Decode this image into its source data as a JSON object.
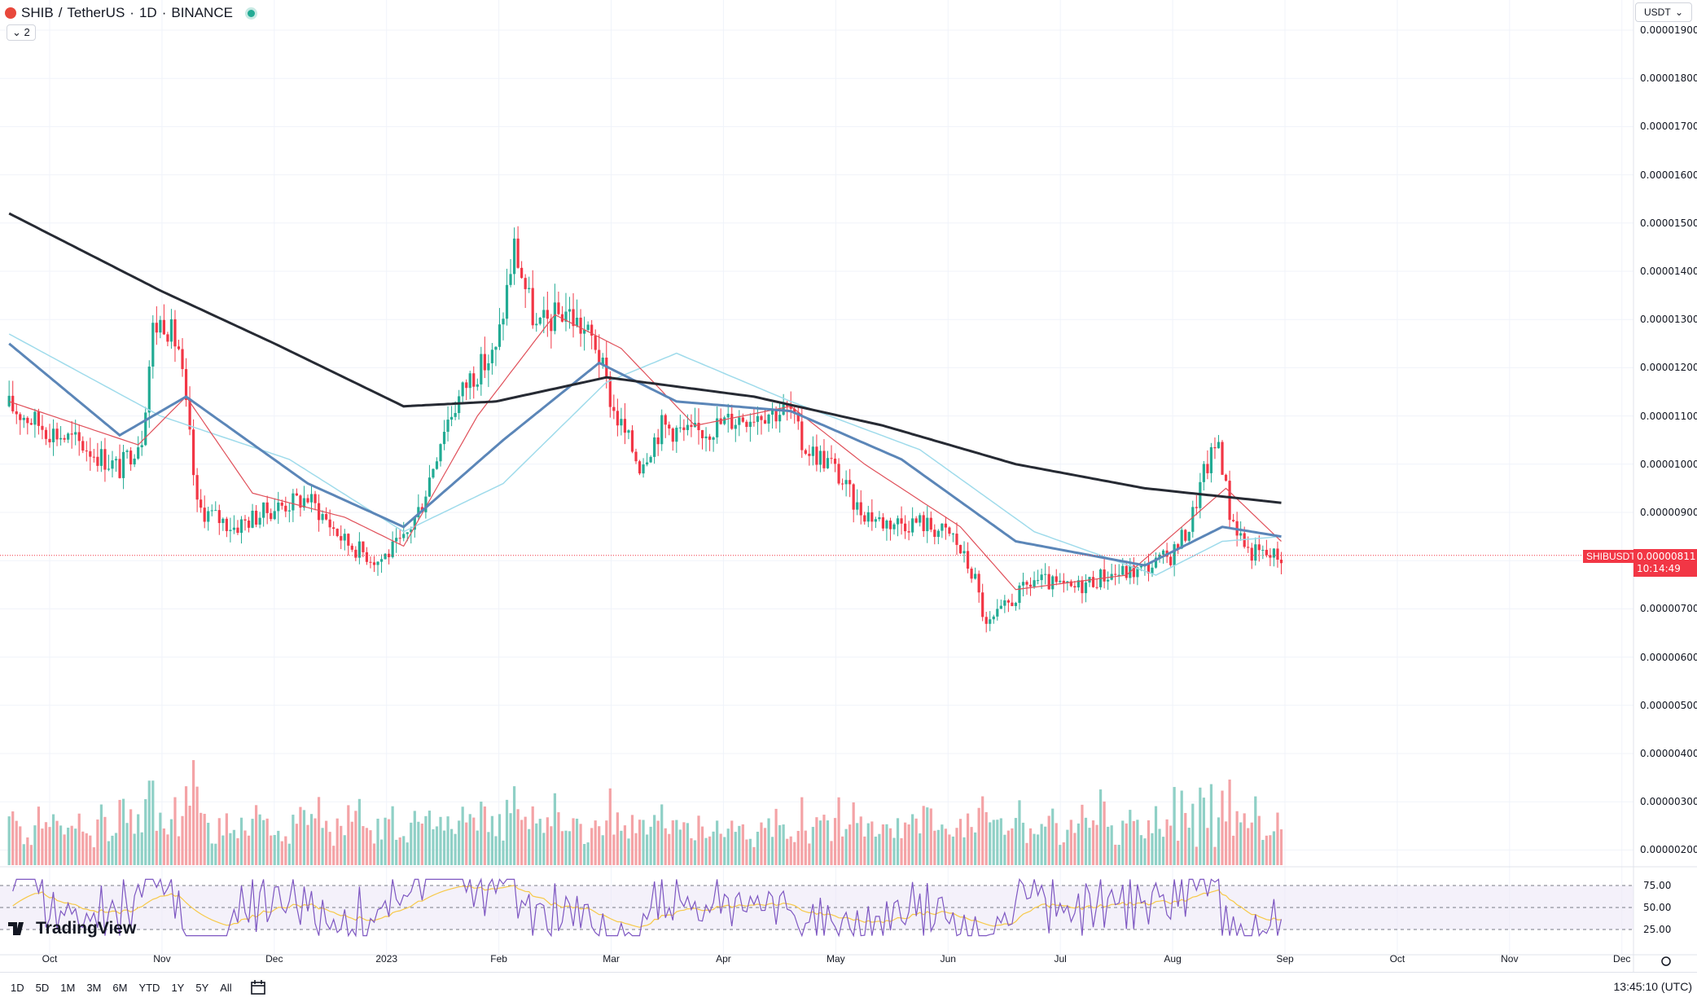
{
  "header": {
    "symbol": "SHIB",
    "sep1": "/",
    "pair": "TetherUS",
    "sep2": "·",
    "interval": "1D",
    "sep3": "·",
    "exchange": "BINANCE",
    "collapse_label": "⌄ 2"
  },
  "currency_selector": {
    "value": "USDT",
    "arrow": "⌄"
  },
  "price_tag": {
    "symbol": "SHIBUSDT",
    "price": "0.00000811",
    "countdown": "10:14:49"
  },
  "brand": "TradingView",
  "bottom_toolbar": {
    "ranges": [
      "1D",
      "5D",
      "1M",
      "3M",
      "6M",
      "YTD",
      "1Y",
      "5Y",
      "All"
    ],
    "clock": "13:45:10 (UTC)"
  },
  "colors": {
    "up": "#22ab94",
    "down": "#f23645",
    "up_volume": "#8fd0c6",
    "down_volume": "#f4a3a6",
    "ma20": "#e0505a",
    "ma50": "#5b86b8",
    "ma100": "#9fdbeb",
    "ma200": "#262a33",
    "rsi": "#7e57c2",
    "rsi_ma": "#f7c948"
  },
  "chart_data": {
    "type": "candlestick",
    "x_ticks": [
      "Oct",
      "Nov",
      "Dec",
      "2023",
      "Feb",
      "Mar",
      "Apr",
      "May",
      "Jun",
      "Jul",
      "Aug",
      "Sep",
      "Oct",
      "Nov",
      "Dec"
    ],
    "y_ticks": [
      "0.00001900",
      "0.00001800",
      "0.00001700",
      "0.00001600",
      "0.00001500",
      "0.00001400",
      "0.00001300",
      "0.00001200",
      "0.00001100",
      "0.00001000",
      "0.00000900",
      "0.00000800",
      "0.00000700",
      "0.00000600",
      "0.00000500",
      "0.00000400",
      "0.00000300",
      "0.00000200"
    ],
    "y_range": [
      1.8e-06,
      1.91e-05
    ],
    "current_price": 8.11e-06,
    "price_anchors": [
      [
        "2022-09-20",
        1.12e-05
      ],
      [
        "2022-10-01",
        1.07e-05
      ],
      [
        "2022-10-10",
        1.04e-05
      ],
      [
        "2022-10-20",
        9.9e-06
      ],
      [
        "2022-10-26",
        1.06e-05
      ],
      [
        "2022-10-29",
        1.28e-05
      ],
      [
        "2022-11-01",
        1.3e-05
      ],
      [
        "2022-11-05",
        1.24e-05
      ],
      [
        "2022-11-08",
        1.05e-05
      ],
      [
        "2022-11-10",
        9.1e-06
      ],
      [
        "2022-11-20",
        8.7e-06
      ],
      [
        "2022-12-01",
        9.1e-06
      ],
      [
        "2022-12-10",
        9.3e-06
      ],
      [
        "2022-12-20",
        8.4e-06
      ],
      [
        "2022-12-29",
        8e-06
      ],
      [
        "2023-01-05",
        8.4e-06
      ],
      [
        "2023-01-10",
        9.2e-06
      ],
      [
        "2023-01-16",
        1.08e-05
      ],
      [
        "2023-01-23",
        1.18e-05
      ],
      [
        "2023-01-30",
        1.23e-05
      ],
      [
        "2023-02-04",
        1.45e-05
      ],
      [
        "2023-02-10",
        1.28e-05
      ],
      [
        "2023-02-18",
        1.32e-05
      ],
      [
        "2023-02-26",
        1.25e-05
      ],
      [
        "2023-03-03",
        1.11e-05
      ],
      [
        "2023-03-10",
        1e-05
      ],
      [
        "2023-03-16",
        1.08e-05
      ],
      [
        "2023-03-24",
        1.06e-05
      ],
      [
        "2023-04-03",
        1.09e-05
      ],
      [
        "2023-04-12",
        1.11e-05
      ],
      [
        "2023-04-20",
        1.11e-05
      ],
      [
        "2023-04-23",
        1.04e-05
      ],
      [
        "2023-05-01",
        1e-05
      ],
      [
        "2023-05-08",
        9.1e-06
      ],
      [
        "2023-05-15",
        8.8e-06
      ],
      [
        "2023-05-25",
        8.8e-06
      ],
      [
        "2023-06-03",
        8.5e-06
      ],
      [
        "2023-06-09",
        7.6e-06
      ],
      [
        "2023-06-12",
        6.6e-06
      ],
      [
        "2023-06-18",
        7.1e-06
      ],
      [
        "2023-06-25",
        7.6e-06
      ],
      [
        "2023-07-05",
        7.4e-06
      ],
      [
        "2023-07-14",
        7.7e-06
      ],
      [
        "2023-07-24",
        7.8e-06
      ],
      [
        "2023-08-01",
        8.1e-06
      ],
      [
        "2023-08-06",
        8.7e-06
      ],
      [
        "2023-08-10",
        9.8e-06
      ],
      [
        "2023-08-14",
        1.05e-05
      ],
      [
        "2023-08-17",
        9e-06
      ],
      [
        "2023-08-22",
        8.2e-06
      ],
      [
        "2023-08-28",
        8.1e-06
      ],
      [
        "2023-08-31",
        8.1e-06
      ]
    ],
    "moving_averages": {
      "ma200": [
        [
          "2022-09-20",
          1.52e-05
        ],
        [
          "2022-10-31",
          1.36e-05
        ],
        [
          "2022-12-01",
          1.25e-05
        ],
        [
          "2023-01-05",
          1.12e-05
        ],
        [
          "2023-01-30",
          1.13e-05
        ],
        [
          "2023-03-01",
          1.18e-05
        ],
        [
          "2023-04-10",
          1.14e-05
        ],
        [
          "2023-05-15",
          1.08e-05
        ],
        [
          "2023-06-20",
          1e-05
        ],
        [
          "2023-07-25",
          9.5e-06
        ],
        [
          "2023-08-31",
          9.2e-06
        ]
      ],
      "ma50": [
        [
          "2022-09-20",
          1.25e-05
        ],
        [
          "2022-10-20",
          1.06e-05
        ],
        [
          "2022-11-07",
          1.14e-05
        ],
        [
          "2022-12-10",
          9.6e-06
        ],
        [
          "2023-01-05",
          8.7e-06
        ],
        [
          "2023-02-01",
          1.05e-05
        ],
        [
          "2023-02-27",
          1.21e-05
        ],
        [
          "2023-03-20",
          1.13e-05
        ],
        [
          "2023-04-20",
          1.11e-05
        ],
        [
          "2023-05-20",
          1.01e-05
        ],
        [
          "2023-06-20",
          8.4e-06
        ],
        [
          "2023-07-25",
          7.9e-06
        ],
        [
          "2023-08-15",
          8.7e-06
        ],
        [
          "2023-08-31",
          8.5e-06
        ]
      ],
      "ma100": [
        [
          "2022-09-20",
          1.27e-05
        ],
        [
          "2022-10-31",
          1.1e-05
        ],
        [
          "2022-12-05",
          1.01e-05
        ],
        [
          "2023-01-05",
          8.6e-06
        ],
        [
          "2023-02-01",
          9.6e-06
        ],
        [
          "2023-03-01",
          1.17e-05
        ],
        [
          "2023-03-20",
          1.23e-05
        ],
        [
          "2023-04-20",
          1.13e-05
        ],
        [
          "2023-05-25",
          1.03e-05
        ],
        [
          "2023-06-25",
          8.6e-06
        ],
        [
          "2023-07-28",
          7.7e-06
        ],
        [
          "2023-08-15",
          8.4e-06
        ],
        [
          "2023-08-31",
          8.5e-06
        ]
      ],
      "ma20": [
        [
          "2022-09-20",
          1.13e-05
        ],
        [
          "2022-10-25",
          1.04e-05
        ],
        [
          "2022-11-07",
          1.14e-05
        ],
        [
          "2022-11-25",
          9.4e-06
        ],
        [
          "2022-12-20",
          8.9e-06
        ],
        [
          "2023-01-05",
          8.3e-06
        ],
        [
          "2023-01-25",
          1.1e-05
        ],
        [
          "2023-02-15",
          1.31e-05
        ],
        [
          "2023-03-05",
          1.24e-05
        ],
        [
          "2023-03-25",
          1.08e-05
        ],
        [
          "2023-04-20",
          1.12e-05
        ],
        [
          "2023-05-10",
          1e-05
        ],
        [
          "2023-06-05",
          8.7e-06
        ],
        [
          "2023-06-20",
          7.4e-06
        ],
        [
          "2023-07-20",
          7.7e-06
        ],
        [
          "2023-08-16",
          9.5e-06
        ],
        [
          "2023-08-31",
          8.4e-06
        ]
      ]
    },
    "rsi": {
      "levels": [
        "75.00",
        "50.00",
        "25.00"
      ],
      "last": 45
    }
  }
}
